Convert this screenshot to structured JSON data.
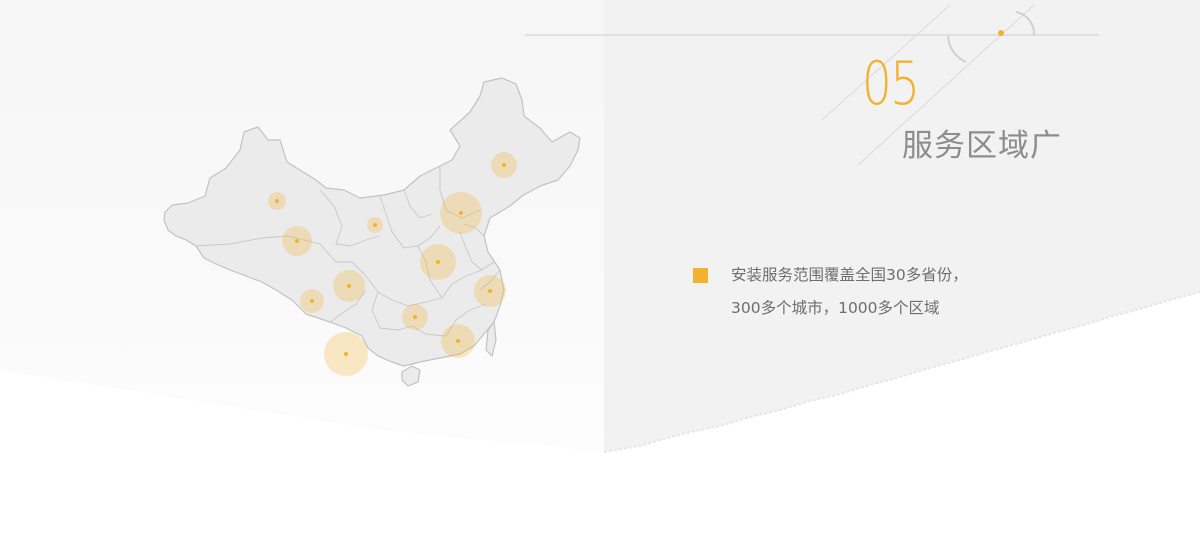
{
  "section": {
    "number": "05",
    "title": "服务区域广",
    "description_lines": [
      "安装服务范围覆盖全国30多省份，",
      "300多个城市，1000多个区域"
    ]
  },
  "colors": {
    "accent": "#f2b22e",
    "title_gray": "#8d8d8d",
    "text_gray": "#6e6e6e",
    "map_fill": "#ebebeb",
    "map_stroke": "#c2c2c2",
    "panel_gray": "#f2f2f2"
  },
  "icons": {
    "bullet": "square-bullet-icon",
    "map": "china-map-icon"
  }
}
